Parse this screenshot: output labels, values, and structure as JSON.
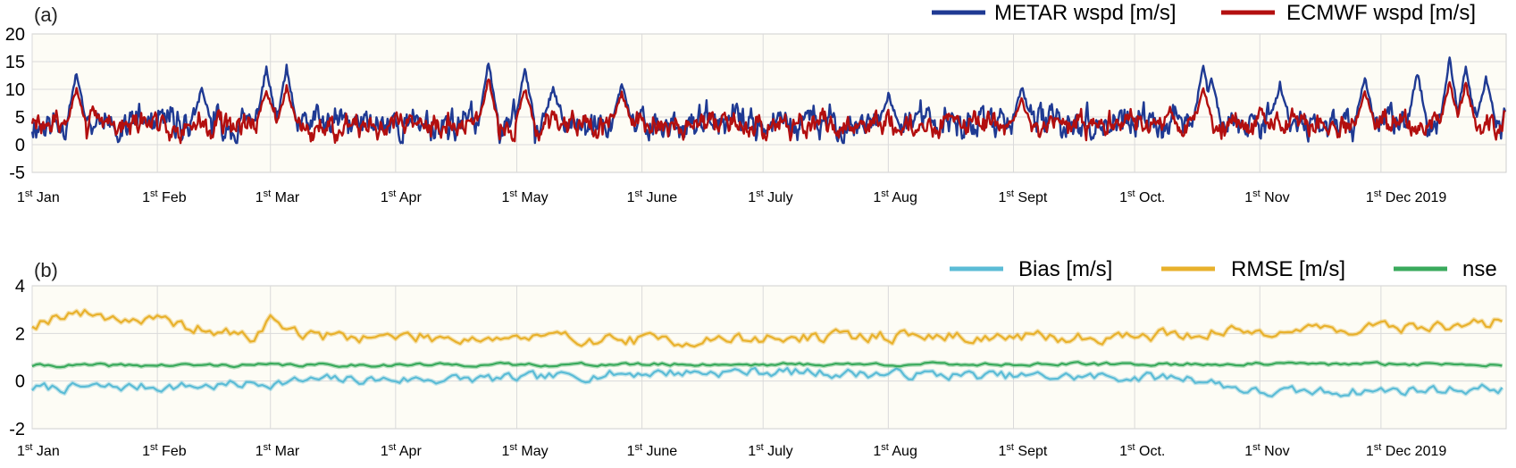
{
  "chart_data": [
    {
      "type": "line",
      "panel_label": "(a)",
      "x_ticks": [
        "Jan",
        "Feb",
        "Mar",
        "Apr",
        "May",
        "June",
        "July",
        "Aug",
        "Sept",
        "Oct.",
        "Nov",
        "Dec 2019"
      ],
      "x_tick_prefix": "1",
      "x_tick_sup": "st",
      "xlim": [
        "2019-01-01",
        "2019-12-31"
      ],
      "y_ticks": [
        "20",
        "15",
        "10",
        "5",
        "0",
        "-5"
      ],
      "ylim": [
        -5,
        20
      ],
      "grid": true,
      "legend_position": "top-right",
      "series": [
        {
          "name": "METAR wspd [m/s]",
          "color": "#1f3a93",
          "baseline": 3.8,
          "amplitude": 2.6,
          "seed": 11,
          "peaks": [
            [
              "2019-01-12",
              13
            ],
            [
              "2019-02-12",
              10
            ],
            [
              "2019-02-28",
              14
            ],
            [
              "2019-03-05",
              14
            ],
            [
              "2019-04-24",
              15
            ],
            [
              "2019-05-03",
              14
            ],
            [
              "2019-05-10",
              10.5
            ],
            [
              "2019-05-27",
              11
            ],
            [
              "2019-08-01",
              9
            ],
            [
              "2019-09-03",
              10.5
            ],
            [
              "2019-10-18",
              14.5
            ],
            [
              "2019-10-20",
              12
            ],
            [
              "2019-11-06",
              11
            ],
            [
              "2019-11-27",
              12
            ],
            [
              "2019-12-10",
              13
            ],
            [
              "2019-12-18",
              15.5
            ],
            [
              "2019-12-22",
              14
            ],
            [
              "2019-12-27",
              12
            ]
          ]
        },
        {
          "name": "ECMWF wspd [m/s]",
          "color": "#b30f0f",
          "baseline": 3.6,
          "amplitude": 2.0,
          "seed": 29,
          "peaks": [
            [
              "2019-01-12",
              10
            ],
            [
              "2019-02-28",
              10
            ],
            [
              "2019-03-05",
              10.5
            ],
            [
              "2019-04-24",
              12
            ],
            [
              "2019-05-03",
              10
            ],
            [
              "2019-05-27",
              9.5
            ],
            [
              "2019-09-03",
              8
            ],
            [
              "2019-10-18",
              10
            ],
            [
              "2019-11-27",
              9.5
            ],
            [
              "2019-12-18",
              11.5
            ],
            [
              "2019-12-22",
              11
            ]
          ]
        }
      ]
    },
    {
      "type": "line",
      "panel_label": "(b)",
      "x_ticks": [
        "Jan",
        "Feb",
        "Mar",
        "Apr",
        "May",
        "June",
        "July",
        "Aug",
        "Sept",
        "Oct.",
        "Nov",
        "Dec 2019"
      ],
      "x_tick_prefix": "1",
      "x_tick_sup": "st",
      "xlim": [
        "2019-01-01",
        "2019-12-31"
      ],
      "y_ticks": [
        "4",
        "2",
        "0",
        "-2"
      ],
      "ylim": [
        -2,
        4
      ],
      "grid": true,
      "legend_position": "top-right",
      "series": [
        {
          "name": "Bias [m/s]",
          "color": "#5bbcd6",
          "baseline": 0.05,
          "amplitude": 0.18,
          "seed": 7,
          "trend": [
            [
              "2019-01-01",
              -0.3
            ],
            [
              "2019-02-15",
              -0.2
            ],
            [
              "2019-03-15",
              0.05
            ],
            [
              "2019-05-01",
              0.1
            ],
            [
              "2019-06-01",
              0.35
            ],
            [
              "2019-07-01",
              0.4
            ],
            [
              "2019-09-01",
              0.2
            ],
            [
              "2019-10-15",
              0.15
            ],
            [
              "2019-11-01",
              -0.5
            ],
            [
              "2019-12-01",
              -0.4
            ],
            [
              "2019-12-31",
              -0.3
            ]
          ]
        },
        {
          "name": "RMSE [m/s]",
          "color": "#e8b12c",
          "baseline": 2.0,
          "amplitude": 0.22,
          "seed": 19,
          "trend": [
            [
              "2019-01-01",
              2.4
            ],
            [
              "2019-01-10",
              2.9
            ],
            [
              "2019-02-01",
              2.5
            ],
            [
              "2019-02-25",
              1.8
            ],
            [
              "2019-03-01",
              2.6
            ],
            [
              "2019-03-10",
              1.9
            ],
            [
              "2019-05-10",
              1.8
            ],
            [
              "2019-06-10",
              1.7
            ],
            [
              "2019-08-01",
              1.9
            ],
            [
              "2019-09-15",
              1.8
            ],
            [
              "2019-10-15",
              2.0
            ],
            [
              "2019-11-15",
              2.2
            ],
            [
              "2019-12-20",
              2.3
            ],
            [
              "2019-12-31",
              2.5
            ]
          ]
        },
        {
          "name": "nse",
          "color": "#3aaa5c",
          "baseline": 0.68,
          "amplitude": 0.06,
          "seed": 41,
          "trend": [
            [
              "2019-01-01",
              0.65
            ],
            [
              "2019-06-01",
              0.7
            ],
            [
              "2019-12-31",
              0.72
            ]
          ]
        }
      ]
    }
  ]
}
